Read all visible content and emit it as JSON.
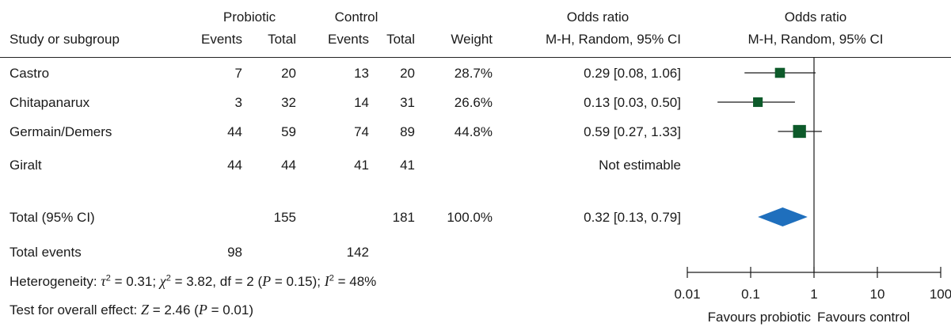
{
  "header": {
    "group1": "Probiotic",
    "group2": "Control",
    "or_col": "Odds ratio",
    "or_plot": "Odds ratio",
    "study_col": "Study or subgroup",
    "events": "Events",
    "total": "Total",
    "weight": "Weight",
    "method": "M-H, Random, 95% CI",
    "method_plot": "M-H, Random, 95% CI"
  },
  "studies": [
    {
      "name": "Castro",
      "p_events": "7",
      "p_total": "20",
      "c_events": "13",
      "c_total": "20",
      "weight": "28.7%",
      "or_text": "0.29 [0.08, 1.06]"
    },
    {
      "name": "Chitapanarux",
      "p_events": "3",
      "p_total": "32",
      "c_events": "14",
      "c_total": "31",
      "weight": "26.6%",
      "or_text": "0.13 [0.03, 0.50]"
    },
    {
      "name": "Germain/Demers",
      "p_events": "44",
      "p_total": "59",
      "c_events": "74",
      "c_total": "89",
      "weight": "44.8%",
      "or_text": "0.59 [0.27, 1.33]"
    },
    {
      "name": "Giralt",
      "p_events": "44",
      "p_total": "44",
      "c_events": "41",
      "c_total": "41",
      "weight": "",
      "or_text": "Not estimable"
    }
  ],
  "total": {
    "label": "Total (95% CI)",
    "p_total": "155",
    "c_total": "181",
    "weight": "100.0%",
    "or_text": "0.32 [0.13, 0.79]"
  },
  "total_events": {
    "label": "Total events",
    "p_events": "98",
    "c_events": "142"
  },
  "heterogeneity": {
    "prefix": "Heterogeneity: ",
    "tau_sym": "τ",
    "tau": " = 0.31; ",
    "chi_sym": "χ",
    "chi": " = 3.82, df = 2 (",
    "p_sym": "P",
    "p": " = 0.15); ",
    "i_sym": "I",
    "i": " = 48%"
  },
  "overall": {
    "prefix": "Test for overall effect: ",
    "z_sym": "Z",
    "z": " = 2.46 (",
    "p_sym": "P",
    "p": " = 0.01)"
  },
  "chart_data": {
    "type": "forest",
    "x_scale": "log",
    "xlim": [
      0.01,
      100
    ],
    "ticks": [
      "0.01",
      "0.1",
      "1",
      "10",
      "100"
    ],
    "tick_values": [
      0.01,
      0.1,
      1,
      10,
      100
    ],
    "null_value": 1,
    "favours_left": "Favours probiotic",
    "favours_right": "Favours control",
    "studies": [
      {
        "name": "Castro",
        "or": 0.29,
        "lower": 0.08,
        "upper": 1.06,
        "weight": 28.7
      },
      {
        "name": "Chitapanarux",
        "or": 0.13,
        "lower": 0.03,
        "upper": 0.5,
        "weight": 26.6
      },
      {
        "name": "Germain/Demers",
        "or": 0.59,
        "lower": 0.27,
        "upper": 1.33,
        "weight": 44.8
      }
    ],
    "pooled": {
      "or": 0.32,
      "lower": 0.13,
      "upper": 0.79
    },
    "colors": {
      "square": "#0d5a2a",
      "diamond": "#1f6fbd",
      "line": "#1a1a1a"
    }
  }
}
